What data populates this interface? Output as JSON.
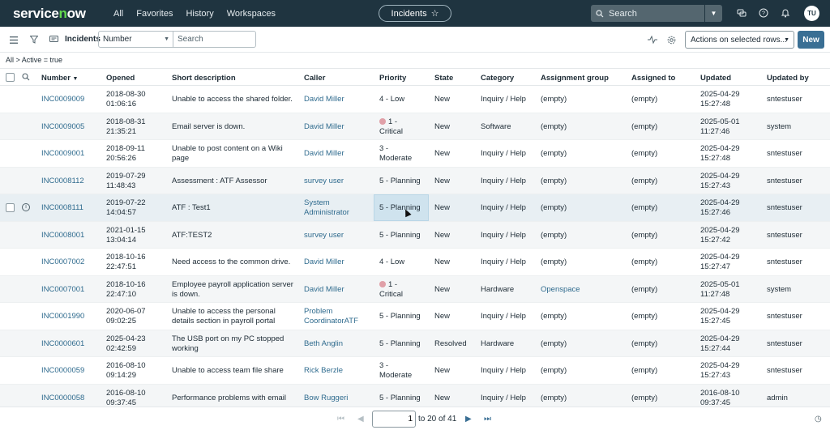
{
  "topnav": {
    "logo": "servicenow",
    "items": [
      "All",
      "Favorites",
      "History",
      "Workspaces"
    ],
    "context_pill": "Incidents",
    "search_placeholder": "Search",
    "avatar": "TU"
  },
  "toolbar": {
    "title": "Incidents",
    "field_select": "Number",
    "search_placeholder": "Search",
    "actions_select": "Actions on selected rows...",
    "new_label": "New"
  },
  "breadcrumb": "All > Active = true",
  "columns": [
    "Number",
    "Opened",
    "Short description",
    "Caller",
    "Priority",
    "State",
    "Category",
    "Assignment group",
    "Assigned to",
    "Updated",
    "Updated by"
  ],
  "rows": [
    {
      "number": "INC0009009",
      "opened": [
        "2018-08-30",
        "01:06:16"
      ],
      "desc": [
        "Unable to access the shared folder."
      ],
      "caller": [
        "David Miller"
      ],
      "priority": [
        "4 - Low"
      ],
      "critical": false,
      "state": "New",
      "category": "Inquiry / Help",
      "group": "(empty)",
      "group_link": false,
      "assigned": "(empty)",
      "updated": [
        "2025-04-29",
        "15:27:48"
      ],
      "updated_by": "sntestuser"
    },
    {
      "number": "INC0009005",
      "opened": [
        "2018-08-31",
        "21:35:21"
      ],
      "desc": [
        "Email server is down."
      ],
      "caller": [
        "David Miller"
      ],
      "priority": [
        "1 -",
        "Critical"
      ],
      "critical": true,
      "state": "New",
      "category": "Software",
      "group": "(empty)",
      "group_link": false,
      "assigned": "(empty)",
      "updated": [
        "2025-05-01",
        "11:27:46"
      ],
      "updated_by": "system"
    },
    {
      "number": "INC0009001",
      "opened": [
        "2018-09-11",
        "20:56:26"
      ],
      "desc": [
        "Unable to post content on a Wiki",
        "page"
      ],
      "caller": [
        "David Miller"
      ],
      "priority": [
        "3 -",
        "Moderate"
      ],
      "critical": false,
      "state": "New",
      "category": "Inquiry / Help",
      "group": "(empty)",
      "group_link": false,
      "assigned": "(empty)",
      "updated": [
        "2025-04-29",
        "15:27:48"
      ],
      "updated_by": "sntestuser"
    },
    {
      "number": "INC0008112",
      "opened": [
        "2019-07-29",
        "11:48:43"
      ],
      "desc": [
        "Assessment : ATF Assessor"
      ],
      "caller": [
        "survey user"
      ],
      "priority": [
        "5 - Planning"
      ],
      "critical": false,
      "state": "New",
      "category": "Inquiry / Help",
      "group": "(empty)",
      "group_link": false,
      "assigned": "(empty)",
      "updated": [
        "2025-04-29",
        "15:27:43"
      ],
      "updated_by": "sntestuser"
    },
    {
      "number": "INC0008111",
      "opened": [
        "2019-07-22",
        "14:04:57"
      ],
      "desc": [
        "ATF : Test1"
      ],
      "caller": [
        "System",
        "Administrator"
      ],
      "priority": [
        "5 - Planning"
      ],
      "critical": false,
      "state": "New",
      "category": "Inquiry / Help",
      "group": "(empty)",
      "group_link": false,
      "assigned": "(empty)",
      "updated": [
        "2025-04-29",
        "15:27:46"
      ],
      "updated_by": "sntestuser"
    },
    {
      "number": "INC0008001",
      "opened": [
        "2021-01-15",
        "13:04:14"
      ],
      "desc": [
        "ATF:TEST2"
      ],
      "caller": [
        "survey user"
      ],
      "priority": [
        "5 - Planning"
      ],
      "critical": false,
      "state": "New",
      "category": "Inquiry / Help",
      "group": "(empty)",
      "group_link": false,
      "assigned": "(empty)",
      "updated": [
        "2025-04-29",
        "15:27:42"
      ],
      "updated_by": "sntestuser"
    },
    {
      "number": "INC0007002",
      "opened": [
        "2018-10-16",
        "22:47:51"
      ],
      "desc": [
        "Need access to the common drive."
      ],
      "caller": [
        "David Miller"
      ],
      "priority": [
        "4 - Low"
      ],
      "critical": false,
      "state": "New",
      "category": "Inquiry / Help",
      "group": "(empty)",
      "group_link": false,
      "assigned": "(empty)",
      "updated": [
        "2025-04-29",
        "15:27:47"
      ],
      "updated_by": "sntestuser"
    },
    {
      "number": "INC0007001",
      "opened": [
        "2018-10-16",
        "22:47:10"
      ],
      "desc": [
        "Employee payroll application server",
        "is down."
      ],
      "caller": [
        "David Miller"
      ],
      "priority": [
        "1 -",
        "Critical"
      ],
      "critical": true,
      "state": "New",
      "category": "Hardware",
      "group": "Openspace",
      "group_link": true,
      "assigned": "(empty)",
      "updated": [
        "2025-05-01",
        "11:27:48"
      ],
      "updated_by": "system"
    },
    {
      "number": "INC0001990",
      "opened": [
        "2020-06-07",
        "09:02:25"
      ],
      "desc": [
        "Unable to access the personal",
        "details section in payroll portal"
      ],
      "caller": [
        "Problem",
        "CoordinatorATF"
      ],
      "priority": [
        "5 - Planning"
      ],
      "critical": false,
      "state": "New",
      "category": "Inquiry / Help",
      "group": "(empty)",
      "group_link": false,
      "assigned": "(empty)",
      "updated": [
        "2025-04-29",
        "15:27:45"
      ],
      "updated_by": "sntestuser"
    },
    {
      "number": "INC0000601",
      "opened": [
        "2025-04-23",
        "02:42:59"
      ],
      "desc": [
        "The USB port on my PC stopped",
        "working"
      ],
      "caller": [
        "Beth Anglin"
      ],
      "priority": [
        "5 - Planning"
      ],
      "critical": false,
      "state": "Resolved",
      "category": "Hardware",
      "group": "(empty)",
      "group_link": false,
      "assigned": "(empty)",
      "updated": [
        "2025-04-29",
        "15:27:44"
      ],
      "updated_by": "sntestuser"
    },
    {
      "number": "INC0000059",
      "opened": [
        "2016-08-10",
        "09:14:29"
      ],
      "desc": [
        "Unable to access team file share"
      ],
      "caller": [
        "Rick Berzle"
      ],
      "priority": [
        "3 -",
        "Moderate"
      ],
      "critical": false,
      "state": "New",
      "category": "Inquiry / Help",
      "group": "(empty)",
      "group_link": false,
      "assigned": "(empty)",
      "updated": [
        "2025-04-29",
        "15:27:43"
      ],
      "updated_by": "sntestuser"
    },
    {
      "number": "INC0000058",
      "opened": [
        "2016-08-10",
        "09:37:45"
      ],
      "desc": [
        "Performance problems with email"
      ],
      "caller": [
        "Bow Ruggeri"
      ],
      "priority": [
        "5 - Planning"
      ],
      "critical": false,
      "state": "New",
      "category": "Inquiry / Help",
      "group": "(empty)",
      "group_link": false,
      "assigned": "(empty)",
      "updated": [
        "2016-08-10",
        "09:37:45"
      ],
      "updated_by": "admin"
    }
  ],
  "pagination": {
    "page_value": "1",
    "range_text": "to 20 of 41"
  },
  "colors": {
    "nav_bg": "#1f3440",
    "link": "#2f6b8e",
    "new_button": "#3a6f94",
    "hover_row": "#e8eff3",
    "critical_dot": "#e0a0a8"
  }
}
